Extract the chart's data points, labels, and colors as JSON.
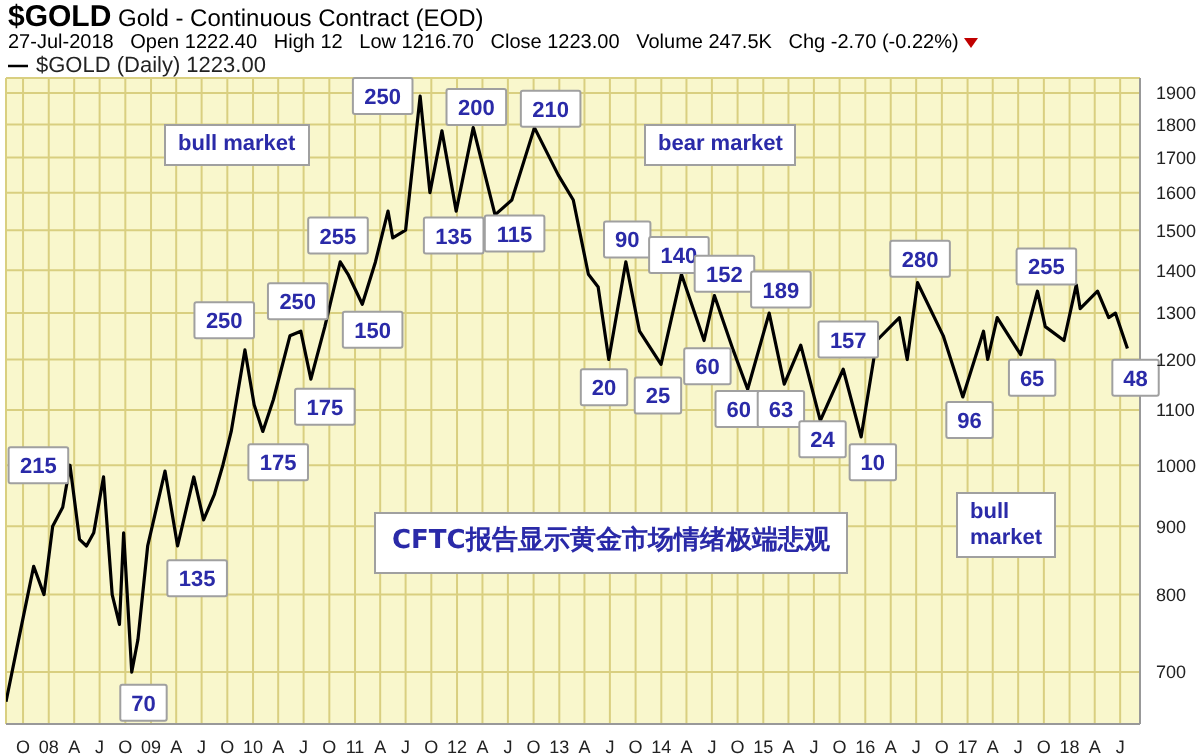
{
  "chart_data": {
    "type": "line",
    "title": "$GOLD Gold - Continuous Contract (EOD)",
    "subtitle": "27-Jul-2018   Open 1222.40   High 12   Low 1216.70   Close 1223.00   Volume 247.5K   Chg -2.70 (-0.22%)",
    "x": [
      "2007-08-01",
      "2007-09-15",
      "2007-11-08",
      "2007-12-15",
      "2008-01-15",
      "2008-02-20",
      "2008-03-17",
      "2008-04-20",
      "2008-05-15",
      "2008-06-10",
      "2008-07-15",
      "2008-08-15",
      "2008-09-10",
      "2008-09-25",
      "2008-10-24",
      "2008-11-15",
      "2008-12-20",
      "2009-02-20",
      "2009-04-06",
      "2009-06-03",
      "2009-07-08",
      "2009-08-15",
      "2009-09-15",
      "2009-10-15",
      "2009-12-03",
      "2010-01-05",
      "2010-02-05",
      "2010-03-15",
      "2010-05-13",
      "2010-06-21",
      "2010-07-27",
      "2010-09-15",
      "2010-11-09",
      "2010-12-07",
      "2011-01-27",
      "2011-03-15",
      "2011-04-29",
      "2011-05-16",
      "2011-07-01",
      "2011-08-22",
      "2011-09-26",
      "2011-11-08",
      "2011-12-29",
      "2012-02-28",
      "2012-05-16",
      "2012-07-15",
      "2012-10-04",
      "2012-12-28",
      "2013-02-20",
      "2013-04-15",
      "2013-05-20",
      "2013-06-27",
      "2013-08-27",
      "2013-10-15",
      "2013-12-31",
      "2014-03-14",
      "2014-06-03",
      "2014-07-10",
      "2014-09-15",
      "2014-11-06",
      "2015-01-22",
      "2015-03-17",
      "2015-05-15",
      "2015-07-24",
      "2015-10-14",
      "2015-12-17",
      "2016-02-11",
      "2016-05-02",
      "2016-05-30",
      "2016-07-06",
      "2016-10-06",
      "2016-12-15",
      "2017-02-27",
      "2017-03-14",
      "2017-04-17",
      "2017-07-10",
      "2017-09-08",
      "2017-10-06",
      "2017-12-12",
      "2018-01-25",
      "2018-02-08",
      "2018-04-11",
      "2018-05-21",
      "2018-06-14",
      "2018-07-27"
    ],
    "series": [
      {
        "name": "$GOLD (Daily) 1223.00",
        "color": "#000000",
        "values": [
          665,
          740,
          840,
          800,
          900,
          930,
          1000,
          880,
          870,
          890,
          980,
          800,
          760,
          890,
          700,
          740,
          870,
          990,
          870,
          980,
          910,
          950,
          1000,
          1060,
          1220,
          1110,
          1060,
          1120,
          1250,
          1260,
          1160,
          1270,
          1420,
          1390,
          1320,
          1420,
          1550,
          1480,
          1500,
          1890,
          1600,
          1780,
          1550,
          1790,
          1540,
          1580,
          1790,
          1650,
          1580,
          1390,
          1360,
          1200,
          1420,
          1260,
          1190,
          1390,
          1240,
          1340,
          1220,
          1140,
          1300,
          1150,
          1230,
          1080,
          1180,
          1050,
          1240,
          1290,
          1200,
          1370,
          1250,
          1125,
          1260,
          1200,
          1290,
          1210,
          1350,
          1270,
          1240,
          1365,
          1310,
          1350,
          1290,
          1300,
          1223
        ]
      }
    ],
    "xlim": [
      "2007-08-01",
      "2018-09-10"
    ],
    "ylim": [
      640,
      1950
    ],
    "log": "y",
    "xticks": [
      {
        "value": "2007-10-01",
        "label": "O"
      },
      {
        "value": "2008-01-01",
        "label": "08"
      },
      {
        "value": "2008-04-01",
        "label": "A"
      },
      {
        "value": "2008-07-01",
        "label": "J"
      },
      {
        "value": "2008-10-01",
        "label": "O"
      },
      {
        "value": "2009-01-01",
        "label": "09"
      },
      {
        "value": "2009-04-01",
        "label": "A"
      },
      {
        "value": "2009-07-01",
        "label": "J"
      },
      {
        "value": "2009-10-01",
        "label": "O"
      },
      {
        "value": "2010-01-01",
        "label": "10"
      },
      {
        "value": "2010-04-01",
        "label": "A"
      },
      {
        "value": "2010-07-01",
        "label": "J"
      },
      {
        "value": "2010-10-01",
        "label": "O"
      },
      {
        "value": "2011-01-01",
        "label": "11"
      },
      {
        "value": "2011-04-01",
        "label": "A"
      },
      {
        "value": "2011-07-01",
        "label": "J"
      },
      {
        "value": "2011-10-01",
        "label": "O"
      },
      {
        "value": "2012-01-01",
        "label": "12"
      },
      {
        "value": "2012-04-01",
        "label": "A"
      },
      {
        "value": "2012-07-01",
        "label": "J"
      },
      {
        "value": "2012-10-01",
        "label": "O"
      },
      {
        "value": "2013-01-01",
        "label": "13"
      },
      {
        "value": "2013-04-01",
        "label": "A"
      },
      {
        "value": "2013-07-01",
        "label": "J"
      },
      {
        "value": "2013-10-01",
        "label": "O"
      },
      {
        "value": "2014-01-01",
        "label": "14"
      },
      {
        "value": "2014-04-01",
        "label": "A"
      },
      {
        "value": "2014-07-01",
        "label": "J"
      },
      {
        "value": "2014-10-01",
        "label": "O"
      },
      {
        "value": "2015-01-01",
        "label": "15"
      },
      {
        "value": "2015-04-01",
        "label": "A"
      },
      {
        "value": "2015-07-01",
        "label": "J"
      },
      {
        "value": "2015-10-01",
        "label": "O"
      },
      {
        "value": "2016-01-01",
        "label": "16"
      },
      {
        "value": "2016-04-01",
        "label": "A"
      },
      {
        "value": "2016-07-01",
        "label": "J"
      },
      {
        "value": "2016-10-01",
        "label": "O"
      },
      {
        "value": "2017-01-01",
        "label": "17"
      },
      {
        "value": "2017-04-01",
        "label": "A"
      },
      {
        "value": "2017-07-01",
        "label": "J"
      },
      {
        "value": "2017-10-01",
        "label": "O"
      },
      {
        "value": "2018-01-01",
        "label": "18"
      },
      {
        "value": "2018-04-01",
        "label": "A"
      },
      {
        "value": "2018-07-01",
        "label": "J"
      }
    ],
    "yticks": [
      700,
      800,
      900,
      1000,
      1100,
      1200,
      1300,
      1400,
      1500,
      1600,
      1700,
      1800,
      1900
    ],
    "grid": true,
    "legend": "top left",
    "marker": "none",
    "annotations": [
      {
        "text": "250",
        "x": "2011-04-10",
        "y": 1890
      },
      {
        "text": "200",
        "x": "2012-03-10",
        "y": 1855
      },
      {
        "text": "210",
        "x": "2012-12-01",
        "y": 1849
      },
      {
        "text": "135",
        "x": "2011-12-20",
        "y": 1486
      },
      {
        "text": "115",
        "x": "2012-07-25",
        "y": 1491
      },
      {
        "text": "255",
        "x": "2010-11-01",
        "y": 1486
      },
      {
        "text": "250",
        "x": "2010-06-10",
        "y": 1327
      },
      {
        "text": "250",
        "x": "2009-09-20",
        "y": 1284
      },
      {
        "text": "150",
        "x": "2011-03-05",
        "y": 1263
      },
      {
        "text": "175",
        "x": "2010-09-15",
        "y": 1106
      },
      {
        "text": "175",
        "x": "2010-04-01",
        "y": 1005
      },
      {
        "text": "215",
        "x": "2007-11-25",
        "y": 1000
      },
      {
        "text": "135",
        "x": "2009-06-15",
        "y": 823
      },
      {
        "text": "70",
        "x": "2008-12-05",
        "y": 664
      },
      {
        "text": "90",
        "x": "2013-09-01",
        "y": 1476
      },
      {
        "text": "140",
        "x": "2014-03-05",
        "y": 1437
      },
      {
        "text": "152",
        "x": "2014-08-15",
        "y": 1391
      },
      {
        "text": "189",
        "x": "2015-03-05",
        "y": 1354
      },
      {
        "text": "280",
        "x": "2016-07-15",
        "y": 1428
      },
      {
        "text": "255",
        "x": "2017-10-10",
        "y": 1409
      },
      {
        "text": "157",
        "x": "2015-11-01",
        "y": 1242
      },
      {
        "text": "60",
        "x": "2014-06-15",
        "y": 1186
      },
      {
        "text": "65",
        "x": "2017-08-20",
        "y": 1163
      },
      {
        "text": "48",
        "x": "2018-08-25",
        "y": 1163
      },
      {
        "text": "20",
        "x": "2013-06-10",
        "y": 1144
      },
      {
        "text": "25",
        "x": "2013-12-20",
        "y": 1128
      },
      {
        "text": "60",
        "x": "2014-10-05",
        "y": 1102
      },
      {
        "text": "63",
        "x": "2015-03-05",
        "y": 1102
      },
      {
        "text": "96",
        "x": "2017-01-08",
        "y": 1081
      },
      {
        "text": "24",
        "x": "2015-08-01",
        "y": 1046
      },
      {
        "text": "10",
        "x": "2016-01-28",
        "y": 1005
      },
      "bull market",
      "bear market",
      "bull\nmarket",
      "CFTC报告显示黄金市场情绪极端悲观"
    ]
  }
}
